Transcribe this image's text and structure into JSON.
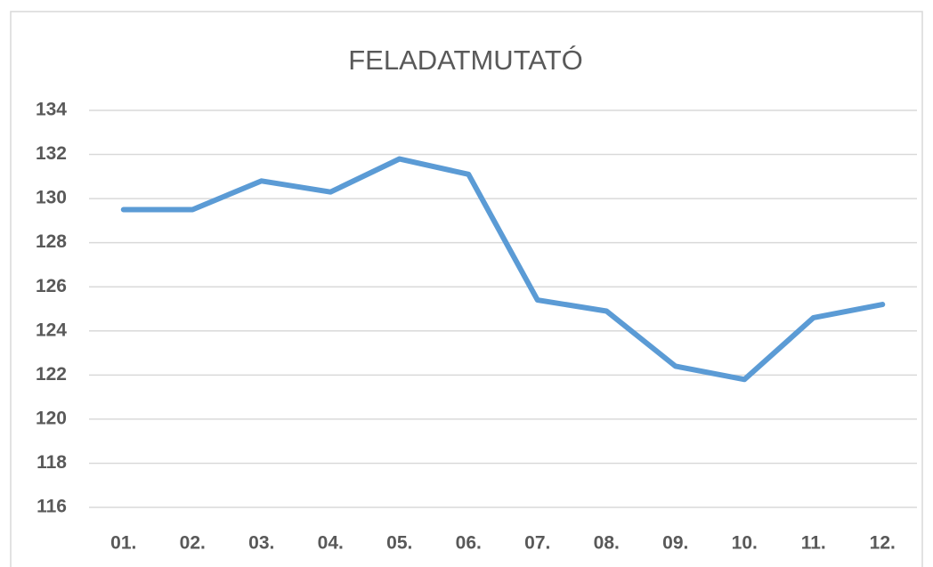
{
  "chart_data": {
    "type": "line",
    "title": "FELADATMUTATÓ",
    "categories": [
      "01.",
      "02.",
      "03.",
      "04.",
      "05.",
      "06.",
      "07.",
      "08.",
      "09.",
      "10.",
      "11.",
      "12."
    ],
    "values": [
      129.5,
      129.5,
      130.8,
      130.3,
      131.8,
      131.1,
      125.4,
      124.9,
      122.4,
      121.8,
      124.6,
      125.2
    ],
    "color": "#5b9bd5",
    "ylim": [
      116,
      134
    ],
    "yticks": [
      116,
      118,
      120,
      122,
      124,
      126,
      128,
      130,
      132,
      134
    ],
    "grid": true
  }
}
